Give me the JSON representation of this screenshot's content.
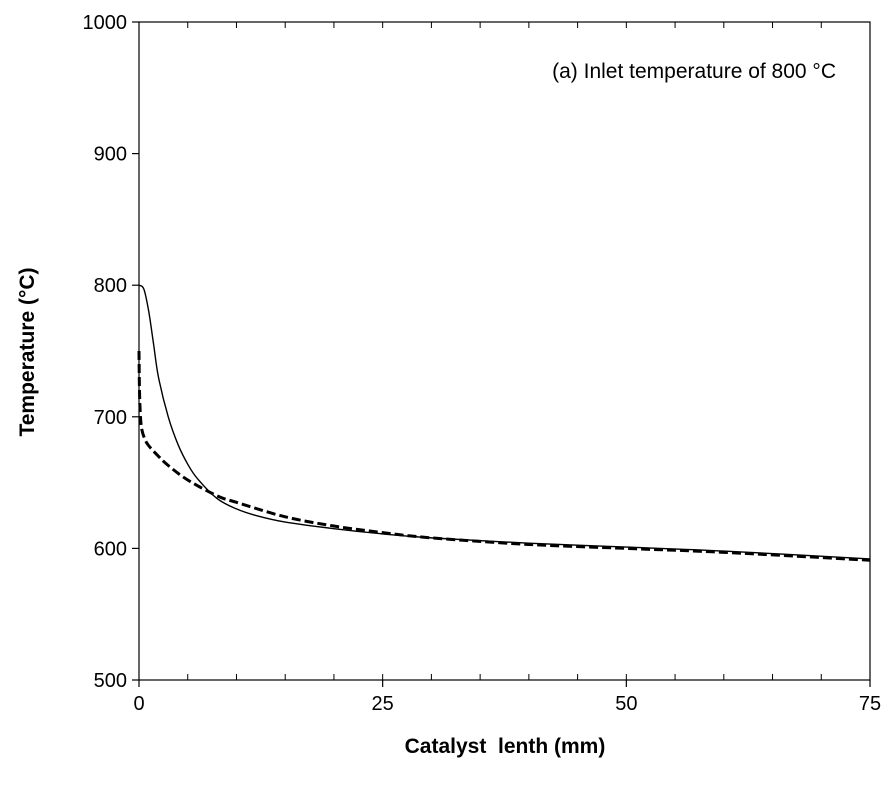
{
  "chart_data": {
    "type": "line",
    "title": "",
    "annotation": "(a) Inlet temperature of 800 °C",
    "xlabel": "Catalyst  lenth (mm)",
    "ylabel": "Temperature (°C)",
    "xlim": [
      0,
      75
    ],
    "ylim": [
      500,
      1000
    ],
    "x_ticks": [
      0,
      25,
      50,
      75
    ],
    "x_tick_labels": [
      "0",
      "25",
      "50",
      "75"
    ],
    "x_minor_step": 5,
    "y_ticks": [
      500,
      600,
      700,
      800,
      900,
      1000
    ],
    "y_tick_labels": [
      "500",
      "600",
      "700",
      "800",
      "900",
      "1000"
    ],
    "grid": false,
    "legend": "none",
    "series": [
      {
        "style": "solid",
        "color": "#000000",
        "x": [
          0,
          0.5,
          1,
          1.5,
          2,
          3,
          4,
          5,
          6,
          8,
          10,
          12,
          15,
          20,
          25,
          30,
          40,
          50,
          60,
          75
        ],
        "y": [
          800,
          797,
          780,
          755,
          730,
          700,
          679,
          664,
          653,
          638,
          630,
          625,
          620,
          615,
          611,
          608,
          604,
          601,
          598,
          592
        ]
      },
      {
        "style": "dashed",
        "color": "#000000",
        "x": [
          0,
          0.05,
          0.15,
          0.3,
          0.6,
          1,
          2,
          3,
          5,
          8,
          10,
          15,
          20,
          25,
          30,
          40,
          50,
          60,
          75
        ],
        "y": [
          750,
          720,
          700,
          690,
          683,
          678,
          670,
          663,
          652,
          640,
          635,
          624,
          617,
          612,
          608,
          603,
          600,
          597,
          591
        ]
      }
    ]
  }
}
